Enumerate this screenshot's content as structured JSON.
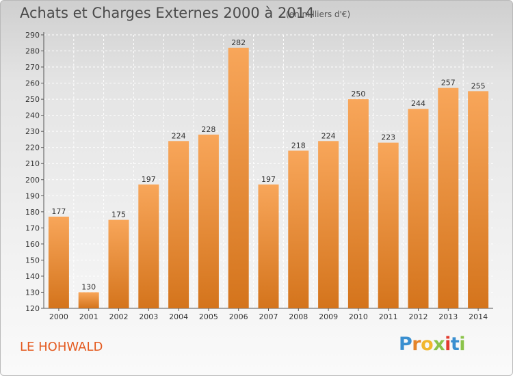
{
  "title": "Achats et Charges Externes 2000 à 2014",
  "unit_label": "(en milliers d'€)",
  "commune": "LE HOHWALD",
  "brand": {
    "letters": [
      "P",
      "r",
      "o",
      "x",
      "i",
      "t",
      "i"
    ],
    "colors": [
      "#3a8fd0",
      "#e4842a",
      "#f1b72e",
      "#8bc34a",
      "#e23b2e",
      "#3a8fd0",
      "#8bc34a"
    ]
  },
  "colors": {
    "bar_top": "#f8a65a",
    "bar_bottom": "#d4741c",
    "commune_text": "#e45a1f"
  },
  "chart_data": {
    "type": "bar",
    "categories": [
      "2000",
      "2001",
      "2002",
      "2003",
      "2004",
      "2005",
      "2006",
      "2007",
      "2008",
      "2009",
      "2010",
      "2011",
      "2012",
      "2013",
      "2014"
    ],
    "values": [
      177,
      130,
      175,
      197,
      224,
      228,
      282,
      197,
      218,
      224,
      250,
      223,
      244,
      257,
      255
    ],
    "title": "Achats et Charges Externes 2000 à 2014",
    "xlabel": "",
    "ylabel": "",
    "ylim": [
      120,
      290
    ],
    "yticks": [
      120,
      130,
      140,
      150,
      160,
      170,
      180,
      190,
      200,
      210,
      220,
      230,
      240,
      250,
      260,
      270,
      280,
      290
    ],
    "grid": true,
    "legend": "none"
  }
}
